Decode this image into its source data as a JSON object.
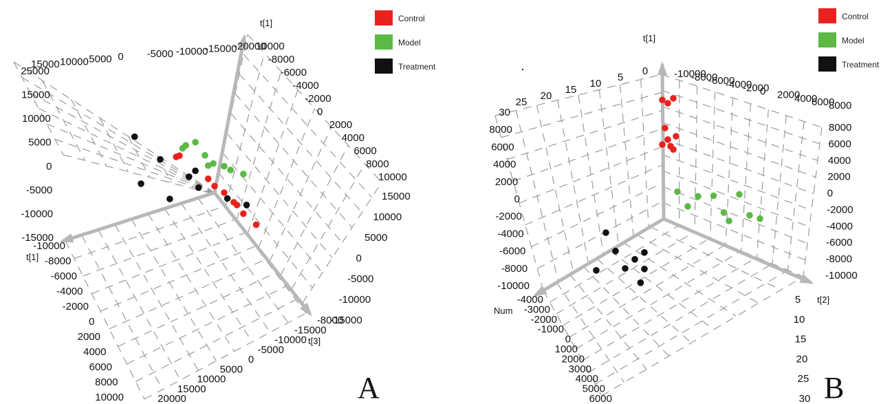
{
  "figure": {
    "panel_labels": [
      "A",
      "B"
    ]
  },
  "colors": {
    "Control": "#e8231f",
    "Model": "#5cb946",
    "Treatment": "#111111",
    "axis": "#b8b8b8",
    "grid": "#9a9a9a"
  },
  "chart_data": [
    {
      "panel": "A",
      "type": "scatter",
      "title": "",
      "axis_names": [
        "t[1]",
        "t[1]",
        "t[3]"
      ],
      "legend": {
        "placement": "top-right",
        "entries": [
          "Control",
          "Model",
          "Treatment"
        ]
      },
      "tick_labels": {
        "left_vertical": [
          "25000",
          "15000",
          "10000",
          "5000",
          "0",
          "-5000",
          "-10000",
          "-15000"
        ],
        "top_diagonal": [
          "15000",
          "10000",
          "5000",
          "0",
          "-5000",
          "-10000",
          "-15000",
          "-20000"
        ],
        "right_upper": [
          "10000",
          "-8000",
          "-6000",
          "-4000",
          "-2000",
          "0",
          "2000",
          "4000",
          "6000",
          "8000",
          "10000"
        ],
        "right_lower": [
          "15000",
          "10000",
          "5000",
          "0",
          "-5000",
          "-10000",
          "-15000"
        ],
        "bottom_left": [
          "-10000",
          "-8000",
          "-6000",
          "-4000",
          "-2000",
          "0",
          "2000",
          "4000",
          "6000",
          "8000",
          "10000"
        ],
        "bottom_right": [
          "20000",
          "15000",
          "10000",
          "5000",
          "0",
          "-5000",
          "-10000",
          "-15000",
          "-8000"
        ]
      },
      "grid": true,
      "series": [
        {
          "name": "Control",
          "points": [
            [
              -6000,
              4200
            ],
            [
              -5500,
              4800
            ],
            [
              -1000,
              2500
            ],
            [
              0,
              1500
            ],
            [
              1500,
              1000
            ],
            [
              3000,
              -200
            ],
            [
              3500,
              -500
            ],
            [
              4500,
              -1800
            ],
            [
              6500,
              -3000
            ]
          ]
        },
        {
          "name": "Model",
          "points": [
            [
              -3000,
              9500
            ],
            [
              -4500,
              7800
            ],
            [
              -5000,
              6800
            ],
            [
              -1500,
              7500
            ],
            [
              -200,
              6500
            ],
            [
              1500,
              7000
            ],
            [
              2500,
              6800
            ],
            [
              4500,
              7200
            ],
            [
              -1000,
              5500
            ]
          ]
        },
        {
          "name": "Treatment",
          "points": [
            [
              -12500,
              4500
            ],
            [
              -8500,
              2000
            ],
            [
              -3000,
              3000
            ],
            [
              -4000,
              1000
            ],
            [
              -2500,
              -500
            ],
            [
              2000,
              0
            ],
            [
              5000,
              500
            ],
            [
              -11500,
              -5500
            ],
            [
              -7000,
              -6000
            ]
          ]
        }
      ]
    },
    {
      "panel": "B",
      "type": "scatter",
      "title": "",
      "axis_names": [
        "t[1]",
        "Num",
        "t[2]"
      ],
      "legend": {
        "placement": "top-right",
        "entries": [
          "Control",
          "Model",
          "Treatment"
        ]
      },
      "tick_labels": {
        "top_left": [
          "25",
          "20",
          "15",
          "10",
          "5",
          "0"
        ],
        "top_right": [
          "-10000",
          "-8000",
          "-6000",
          "-4000",
          "-2000",
          "0",
          "2000",
          "4000",
          "6000",
          "8000"
        ],
        "left_vertical": [
          "30",
          "8000",
          "6000",
          "4000",
          "2000",
          "0",
          "-2000",
          "-4000",
          "-6000",
          "-8000",
          "-10000"
        ],
        "right_vertical": [
          "8000",
          "6000",
          "4000",
          "2000",
          "0",
          "-2000",
          "-4000",
          "-6000",
          "-8000",
          "-10000"
        ],
        "bottom_left": [
          "-4000",
          "-3000",
          "-2000",
          "-1000",
          "0",
          "1000",
          "2000",
          "3000",
          "4000",
          "5000",
          "6000"
        ],
        "bottom_right": [
          "5",
          "10",
          "15",
          "20",
          "25",
          "30"
        ]
      },
      "grid": true,
      "series": [
        {
          "name": "Control",
          "points": [
            [
              1,
              7200
            ],
            [
              2,
              7000
            ],
            [
              3,
              7300
            ],
            [
              1.5,
              5500
            ],
            [
              2,
              4800
            ],
            [
              3.5,
              5000
            ],
            [
              1,
              4500
            ],
            [
              2.5,
              4400
            ],
            [
              3,
              4200
            ]
          ]
        },
        {
          "name": "Model",
          "points": [
            [
              8,
              900
            ],
            [
              12,
              500
            ],
            [
              15,
              600
            ],
            [
              20,
              800
            ],
            [
              10,
              -500
            ],
            [
              17,
              -1000
            ],
            [
              22,
              -1200
            ],
            [
              24,
              -1500
            ],
            [
              18,
              -1800
            ]
          ]
        },
        {
          "name": "Treatment",
          "points": [
            [
              -3000,
              -500
            ],
            [
              -2500,
              -2300
            ],
            [
              -1000,
              -2800
            ],
            [
              -1500,
              -3300
            ],
            [
              -3500,
              -3800
            ],
            [
              -2000,
              -4000
            ],
            [
              -1000,
              -4300
            ],
            [
              -1200,
              -5500
            ]
          ]
        }
      ]
    }
  ]
}
